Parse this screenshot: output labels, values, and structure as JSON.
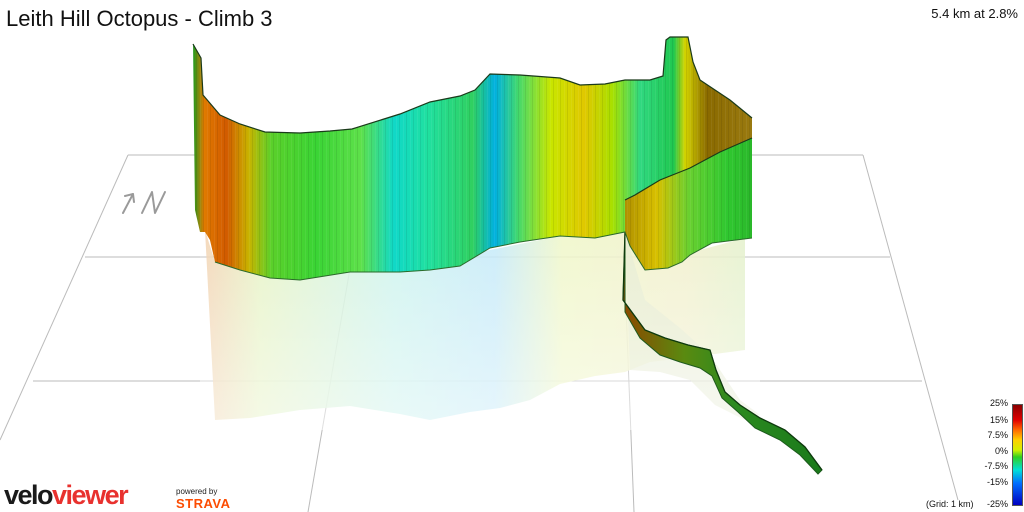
{
  "title": "Leith Hill Octopus - Climb 3",
  "stats": "5.4 km at 2.8%",
  "compass": "↑N",
  "legend": {
    "labels": [
      "25%",
      "15%",
      "7.5%",
      "0%",
      "-7.5%",
      "-15%",
      "-25%"
    ],
    "grid_note": "(Grid: 1 km)"
  },
  "branding": {
    "logo_part1": "velo",
    "logo_part2": "viewer",
    "powered_by": "powered by",
    "strava": "STRAVA"
  },
  "colors": {
    "logo_accent": "#e8312e",
    "strava_orange": "#fc4c02"
  }
}
